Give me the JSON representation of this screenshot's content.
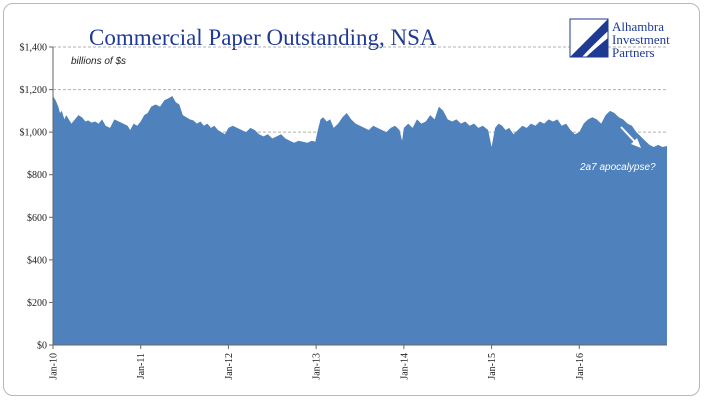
{
  "chart_data": {
    "type": "area",
    "title": "Commercial Paper Outstanding, NSA",
    "unit_label": "billions of $s",
    "x_tick_labels": [
      "Jan-10",
      "Jan-11",
      "Jan-12",
      "Jan-13",
      "Jan-14",
      "Jan-15",
      "Jan-16"
    ],
    "y_tick_labels": [
      "$0",
      "$200",
      "$400",
      "$600",
      "$800",
      "$1,000",
      "$1,200",
      "$1,400"
    ],
    "y_ticks": [
      0,
      200,
      400,
      600,
      800,
      1000,
      1200,
      1400
    ],
    "ylim": [
      0,
      1400
    ],
    "xlim": [
      2010.0,
      2017.0
    ],
    "gridlines": [
      1000,
      1200,
      1400
    ],
    "series_color": "#4f81bd",
    "annotation": "2a7 apocalypse?",
    "series": [
      {
        "x": [
          2010.0,
          2010.03,
          2010.06,
          2010.08,
          2010.1,
          2010.13,
          2010.15,
          2010.18,
          2010.21,
          2010.25,
          2010.29,
          2010.33,
          2010.37,
          2010.4,
          2010.44,
          2010.48,
          2010.52,
          2010.56,
          2010.6,
          2010.65,
          2010.7,
          2010.75,
          2010.8,
          2010.85,
          2010.88,
          2010.92,
          2010.96,
          2011.0,
          2011.04,
          2011.08,
          2011.12,
          2011.17,
          2011.22,
          2011.27,
          2011.32,
          2011.36,
          2011.4,
          2011.44,
          2011.48,
          2011.52,
          2011.56,
          2011.6,
          2011.64,
          2011.68,
          2011.72,
          2011.76,
          2011.8,
          2011.84,
          2011.88,
          2011.92,
          2011.96,
          2012.0,
          2012.05,
          2012.1,
          2012.15,
          2012.2,
          2012.25,
          2012.3,
          2012.35,
          2012.4,
          2012.45,
          2012.5,
          2012.55,
          2012.6,
          2012.65,
          2012.7,
          2012.75,
          2012.8,
          2012.85,
          2012.9,
          2012.95,
          2012.99,
          2013.02,
          2013.05,
          2013.08,
          2013.12,
          2013.16,
          2013.2,
          2013.25,
          2013.3,
          2013.35,
          2013.4,
          2013.45,
          2013.5,
          2013.55,
          2013.6,
          2013.65,
          2013.7,
          2013.75,
          2013.8,
          2013.85,
          2013.9,
          2013.95,
          2013.98,
          2014.0,
          2014.05,
          2014.1,
          2014.15,
          2014.2,
          2014.25,
          2014.3,
          2014.35,
          2014.4,
          2014.45,
          2014.5,
          2014.55,
          2014.6,
          2014.65,
          2014.7,
          2014.75,
          2014.8,
          2014.85,
          2014.9,
          2014.96,
          2015.0,
          2015.04,
          2015.08,
          2015.12,
          2015.16,
          2015.2,
          2015.25,
          2015.3,
          2015.35,
          2015.4,
          2015.45,
          2015.5,
          2015.55,
          2015.6,
          2015.65,
          2015.7,
          2015.75,
          2015.8,
          2015.85,
          2015.9,
          2015.95,
          2016.0,
          2016.05,
          2016.1,
          2016.15,
          2016.2,
          2016.25,
          2016.3,
          2016.35,
          2016.4,
          2016.45,
          2016.5,
          2016.55,
          2016.6,
          2016.65,
          2016.7,
          2016.75,
          2016.8,
          2016.85,
          2016.9,
          2016.95,
          2017.0
        ],
        "values": [
          1170,
          1150,
          1120,
          1090,
          1100,
          1060,
          1080,
          1060,
          1040,
          1060,
          1080,
          1070,
          1050,
          1055,
          1045,
          1050,
          1040,
          1060,
          1030,
          1020,
          1060,
          1050,
          1040,
          1030,
          1010,
          1040,
          1030,
          1050,
          1080,
          1090,
          1120,
          1130,
          1120,
          1150,
          1160,
          1170,
          1140,
          1130,
          1080,
          1070,
          1060,
          1055,
          1040,
          1050,
          1030,
          1040,
          1020,
          1030,
          1010,
          1000,
          990,
          1020,
          1030,
          1020,
          1010,
          1000,
          1020,
          1010,
          990,
          980,
          990,
          970,
          980,
          990,
          970,
          960,
          950,
          960,
          955,
          950,
          960,
          955,
          1010,
          1060,
          1070,
          1050,
          1060,
          1020,
          1040,
          1070,
          1090,
          1060,
          1040,
          1030,
          1020,
          1010,
          1030,
          1020,
          1010,
          1000,
          1020,
          1030,
          1010,
          960,
          1020,
          1040,
          1020,
          1060,
          1040,
          1050,
          1080,
          1060,
          1120,
          1100,
          1060,
          1050,
          1060,
          1040,
          1050,
          1030,
          1040,
          1020,
          1030,
          1010,
          930,
          1020,
          1040,
          1030,
          1010,
          1020,
          990,
          1010,
          1030,
          1020,
          1040,
          1030,
          1050,
          1040,
          1060,
          1050,
          1060,
          1030,
          1040,
          1010,
          990,
          1000,
          1040,
          1060,
          1070,
          1060,
          1040,
          1080,
          1100,
          1090,
          1070,
          1060,
          1040,
          1030,
          1000,
          980,
          960,
          940,
          930,
          940,
          930,
          935
        ]
      }
    ]
  },
  "logo": {
    "line1": "Alhambra",
    "line2": "Investment",
    "line3": "Partners"
  }
}
